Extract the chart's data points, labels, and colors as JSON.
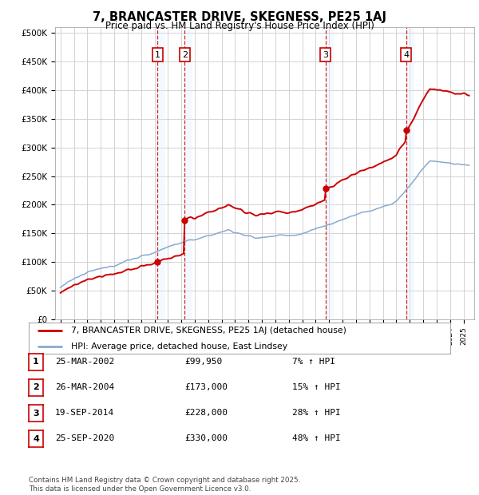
{
  "title": "7, BRANCASTER DRIVE, SKEGNESS, PE25 1AJ",
  "subtitle": "Price paid vs. HM Land Registry's House Price Index (HPI)",
  "y_ticks": [
    0,
    50000,
    100000,
    150000,
    200000,
    250000,
    300000,
    350000,
    400000,
    450000,
    500000
  ],
  "y_tick_labels": [
    "£0",
    "£50K",
    "£100K",
    "£150K",
    "£200K",
    "£250K",
    "£300K",
    "£350K",
    "£400K",
    "£450K",
    "£500K"
  ],
  "sales": [
    {
      "date": 2002.23,
      "price": 99950,
      "label": "1"
    },
    {
      "date": 2004.24,
      "price": 173000,
      "label": "2"
    },
    {
      "date": 2014.72,
      "price": 228000,
      "label": "3"
    },
    {
      "date": 2020.73,
      "price": 330000,
      "label": "4"
    }
  ],
  "sale_info": [
    {
      "num": "1",
      "date": "25-MAR-2002",
      "price": "£99,950",
      "hpi": "7% ↑ HPI"
    },
    {
      "num": "2",
      "date": "26-MAR-2004",
      "price": "£173,000",
      "hpi": "15% ↑ HPI"
    },
    {
      "num": "3",
      "date": "19-SEP-2014",
      "price": "£228,000",
      "hpi": "28% ↑ HPI"
    },
    {
      "num": "4",
      "date": "25-SEP-2020",
      "price": "£330,000",
      "hpi": "48% ↑ HPI"
    }
  ],
  "legend_line1": "7, BRANCASTER DRIVE, SKEGNESS, PE25 1AJ (detached house)",
  "legend_line2": "HPI: Average price, detached house, East Lindsey",
  "footer": "Contains HM Land Registry data © Crown copyright and database right 2025.\nThis data is licensed under the Open Government Licence v3.0.",
  "red_color": "#cc0000",
  "blue_color": "#88aacc",
  "shade_color": "#ddeeff",
  "grid_color": "#cccccc",
  "bg_color": "#ffffff"
}
